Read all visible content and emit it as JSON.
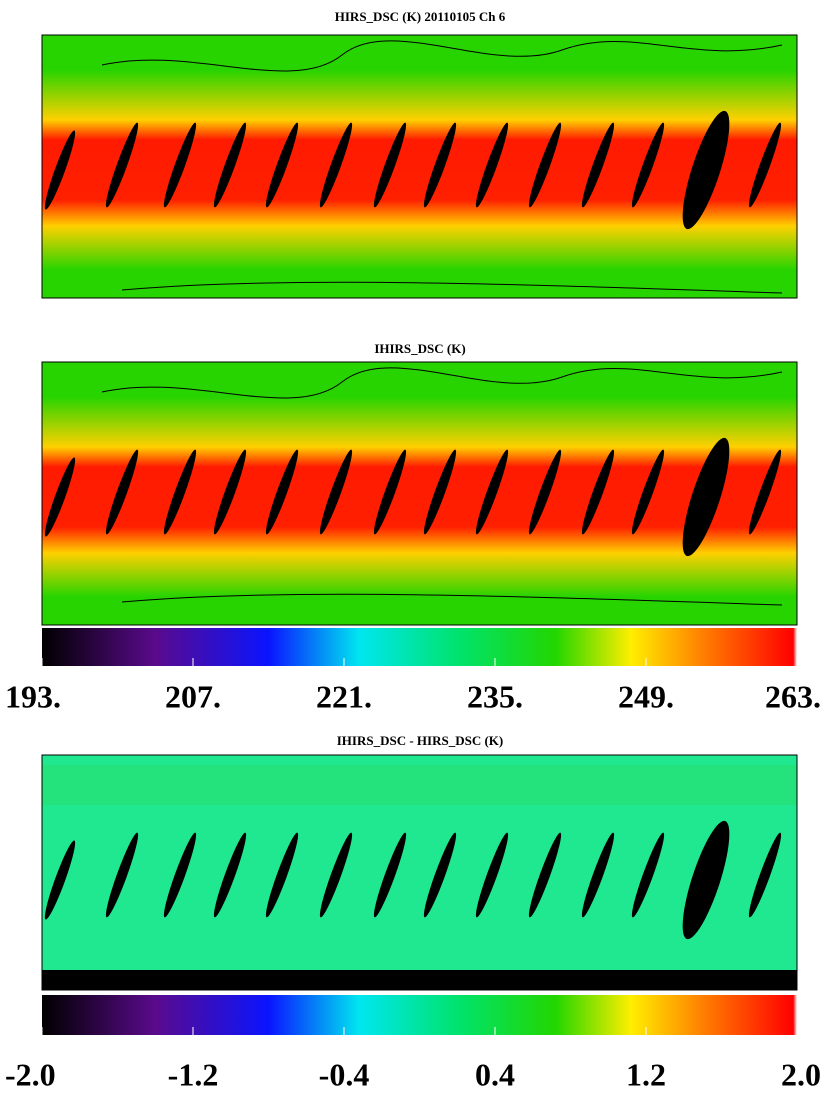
{
  "panels": [
    {
      "title": "HIRS_DSC (K) 20110105 Ch 6"
    },
    {
      "title": "IHIRS_DSC (K)"
    },
    {
      "title": "IHIRS_DSC - HIRS_DSC (K)"
    }
  ],
  "colorbars": [
    {
      "lim": [
        193,
        263
      ],
      "ticks": [
        {
          "value": 193,
          "label": "193."
        },
        {
          "value": 207,
          "label": "207."
        },
        {
          "value": 221,
          "label": "221."
        },
        {
          "value": 235,
          "label": "235."
        },
        {
          "value": 249,
          "label": "249."
        },
        {
          "value": 263,
          "label": "263."
        }
      ]
    },
    {
      "lim": [
        -2,
        2
      ],
      "ticks": [
        {
          "value": -2,
          "label": "-2.0"
        },
        {
          "value": -1.2,
          "label": "-1.2"
        },
        {
          "value": -0.4,
          "label": "-0.4"
        },
        {
          "value": 0.4,
          "label": "0.4"
        },
        {
          "value": 1.2,
          "label": "1.2"
        },
        {
          "value": 2,
          "label": "2.0"
        }
      ]
    }
  ]
}
